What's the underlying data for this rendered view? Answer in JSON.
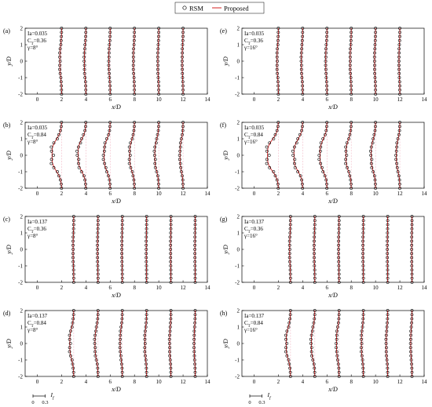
{
  "legend": {
    "rsm_label": "RSM",
    "proposed_label": "Proposed",
    "rsm_color": "#000000",
    "proposed_color": "#d62020"
  },
  "axes": {
    "xlabel": "x/D",
    "ylabel": "y/D",
    "xticks": [
      "0",
      "2",
      "4",
      "6",
      "8",
      "10",
      "12",
      "14"
    ],
    "yticks": [
      "-2",
      "-1",
      "0",
      "1",
      "2"
    ],
    "xlim": [
      -1,
      14
    ],
    "ylim": [
      -2,
      2
    ]
  },
  "scale_bar": {
    "label": "I",
    "sub": "f",
    "ticks": [
      "0",
      "0.3"
    ],
    "range": [
      0,
      0.3
    ]
  },
  "chart_data": [
    {
      "type": "line",
      "panel": "(a)",
      "params": [
        "Ia=0.035",
        "CT=0.36",
        "γ=8°"
      ],
      "stations_x": [
        2,
        4,
        6,
        8,
        10,
        12
      ],
      "y": [
        -2,
        -1.75,
        -1.5,
        -1.25,
        -1,
        -0.75,
        -0.5,
        -0.25,
        0,
        0.25,
        0.5,
        0.75,
        1,
        1.25,
        1.5,
        1.75,
        2
      ],
      "If_peak": [
        0.04,
        0.035,
        0.03,
        0.025,
        0.022,
        0.02
      ]
    },
    {
      "type": "line",
      "panel": "(b)",
      "params": [
        "Ia=0.035",
        "CT=0.84",
        "γ=8°"
      ],
      "stations_x": [
        2,
        4,
        6,
        8,
        10,
        12
      ],
      "y": [
        -2,
        -1.75,
        -1.5,
        -1.25,
        -1,
        -0.75,
        -0.5,
        -0.25,
        0,
        0.25,
        0.5,
        0.75,
        1,
        1.25,
        1.5,
        1.75,
        2
      ],
      "If_peak": [
        0.22,
        0.18,
        0.14,
        0.11,
        0.09,
        0.07
      ]
    },
    {
      "type": "line",
      "panel": "(c)",
      "params": [
        "Ia=0.137",
        "CT=0.36",
        "γ=8°"
      ],
      "stations_x": [
        3,
        5,
        7,
        9,
        11,
        13
      ],
      "y": [
        -2,
        -1.75,
        -1.5,
        -1.25,
        -1,
        -0.75,
        -0.5,
        -0.25,
        0,
        0.25,
        0.5,
        0.75,
        1,
        1.25,
        1.5,
        1.75,
        2
      ],
      "If_peak": [
        0.015,
        0.012,
        0.01,
        0.008,
        0.007,
        0.006
      ]
    },
    {
      "type": "line",
      "panel": "(d)",
      "params": [
        "Ia=0.137",
        "CT=0.84",
        "γ=8°"
      ],
      "stations_x": [
        3,
        5,
        7,
        9,
        11,
        13
      ],
      "y": [
        -2,
        -1.75,
        -1.5,
        -1.25,
        -1,
        -0.75,
        -0.5,
        -0.25,
        0,
        0.25,
        0.5,
        0.75,
        1,
        1.25,
        1.5,
        1.75,
        2
      ],
      "If_peak": [
        0.09,
        0.07,
        0.05,
        0.04,
        0.03,
        0.025
      ]
    },
    {
      "type": "line",
      "panel": "(e)",
      "params": [
        "Ia=0.035",
        "CT=0.36",
        "γ=16°"
      ],
      "stations_x": [
        2,
        4,
        6,
        8,
        10,
        12
      ],
      "y": [
        -2,
        -1.75,
        -1.5,
        -1.25,
        -1,
        -0.75,
        -0.5,
        -0.25,
        0,
        0.25,
        0.5,
        0.75,
        1,
        1.25,
        1.5,
        1.75,
        2
      ],
      "If_peak": [
        0.03,
        0.03,
        0.028,
        0.025,
        0.022,
        0.02
      ]
    },
    {
      "type": "line",
      "panel": "(f)",
      "params": [
        "Ia=0.035",
        "CT=0.84",
        "γ=16°"
      ],
      "stations_x": [
        2,
        4,
        6,
        8,
        10,
        12
      ],
      "y": [
        -2,
        -1.75,
        -1.5,
        -1.25,
        -1,
        -0.75,
        -0.5,
        -0.25,
        0,
        0.25,
        0.5,
        0.75,
        1,
        1.25,
        1.5,
        1.75,
        2
      ],
      "If_peak": [
        0.25,
        0.2,
        0.16,
        0.12,
        0.1,
        0.08
      ]
    },
    {
      "type": "line",
      "panel": "(g)",
      "params": [
        "Ia=0.137",
        "CT=0.36",
        "γ=16°"
      ],
      "stations_x": [
        3,
        5,
        7,
        9,
        11,
        13
      ],
      "y": [
        -2,
        -1.75,
        -1.5,
        -1.25,
        -1,
        -0.75,
        -0.5,
        -0.25,
        0,
        0.25,
        0.5,
        0.75,
        1,
        1.25,
        1.5,
        1.75,
        2
      ],
      "If_peak": [
        0.02,
        0.015,
        0.012,
        0.01,
        0.008,
        0.007
      ]
    },
    {
      "type": "line",
      "panel": "(h)",
      "params": [
        "Ia=0.137",
        "CT=0.84",
        "γ=16°"
      ],
      "stations_x": [
        3,
        5,
        7,
        9,
        11,
        13
      ],
      "y": [
        -2,
        -1.75,
        -1.5,
        -1.25,
        -1,
        -0.75,
        -0.5,
        -0.25,
        0,
        0.25,
        0.5,
        0.75,
        1,
        1.25,
        1.5,
        1.75,
        2
      ],
      "If_peak": [
        0.1,
        0.08,
        0.06,
        0.045,
        0.035,
        0.03
      ]
    }
  ]
}
